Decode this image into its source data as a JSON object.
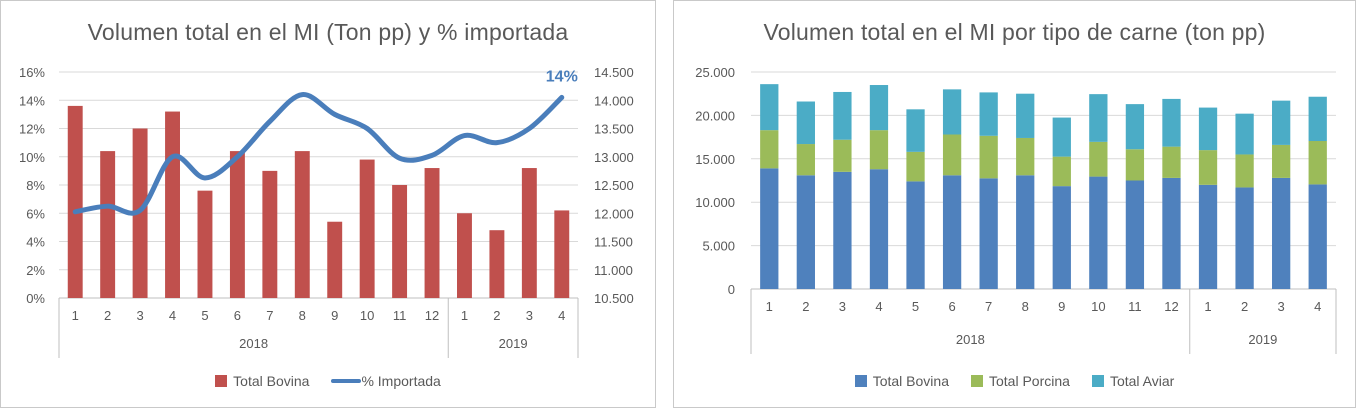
{
  "chart_data": [
    {
      "type": "bar",
      "title": "Volumen total en el MI (Ton pp) y % importada",
      "categories": [
        "1",
        "2",
        "3",
        "4",
        "5",
        "6",
        "7",
        "8",
        "9",
        "10",
        "11",
        "12",
        "1",
        "2",
        "3",
        "4"
      ],
      "year_groups": [
        {
          "label": "2018",
          "count": 12
        },
        {
          "label": "2019",
          "count": 4
        }
      ],
      "series": [
        {
          "name": "Total Bovina",
          "type": "bar",
          "axis": "right",
          "color": "#C0504D",
          "values": [
            13900,
            13100,
            13500,
            13800,
            12400,
            13100,
            12750,
            13100,
            11850,
            12950,
            12500,
            12800,
            12000,
            11700,
            12800,
            12050
          ]
        },
        {
          "name": "% Importada",
          "type": "line",
          "axis": "left",
          "color": "#4A7EBB",
          "values": [
            6.1,
            6.5,
            6.2,
            10.0,
            8.5,
            10.0,
            12.5,
            14.4,
            13.0,
            12.0,
            9.9,
            10.1,
            11.5,
            11.0,
            12.0,
            14.2
          ]
        }
      ],
      "y_left": {
        "min": 0,
        "max": 16,
        "step": 2,
        "ticks": [
          "0%",
          "2%",
          "4%",
          "6%",
          "8%",
          "10%",
          "12%",
          "14%",
          "16%"
        ]
      },
      "y_right": {
        "min": 10500,
        "max": 14500,
        "step": 500,
        "ticks": [
          "10.500",
          "11.000",
          "11.500",
          "12.000",
          "12.500",
          "13.000",
          "13.500",
          "14.000",
          "14.500"
        ]
      },
      "annotation": "14%",
      "grid": true,
      "legend_position": "bottom"
    },
    {
      "type": "bar",
      "stacked": true,
      "title": "Volumen total en el MI por tipo de carne (ton pp)",
      "categories": [
        "1",
        "2",
        "3",
        "4",
        "5",
        "6",
        "7",
        "8",
        "9",
        "10",
        "11",
        "12",
        "1",
        "2",
        "3",
        "4"
      ],
      "year_groups": [
        {
          "label": "2018",
          "count": 12
        },
        {
          "label": "2019",
          "count": 4
        }
      ],
      "series": [
        {
          "name": "Total Bovina",
          "color": "#4F81BD",
          "values": [
            13900,
            13100,
            13500,
            13800,
            12400,
            13100,
            12750,
            13100,
            11850,
            12950,
            12500,
            12800,
            12000,
            11700,
            12800,
            12050
          ]
        },
        {
          "name": "Total Porcina",
          "color": "#9BBB59",
          "values": [
            4400,
            3600,
            3700,
            4500,
            3400,
            4700,
            4900,
            4300,
            3400,
            4000,
            3600,
            3600,
            4000,
            3800,
            3800,
            5000
          ]
        },
        {
          "name": "Total Aviar",
          "color": "#4BACC6",
          "values": [
            5300,
            4900,
            5500,
            5200,
            4900,
            5200,
            5000,
            5100,
            4500,
            5500,
            5200,
            5500,
            4900,
            4700,
            5100,
            5100
          ]
        }
      ],
      "ylim": [
        0,
        25000
      ],
      "y_ticks": [
        "0",
        "5.000",
        "10.000",
        "15.000",
        "20.000",
        "25.000"
      ],
      "grid": true,
      "legend_position": "bottom"
    }
  ]
}
